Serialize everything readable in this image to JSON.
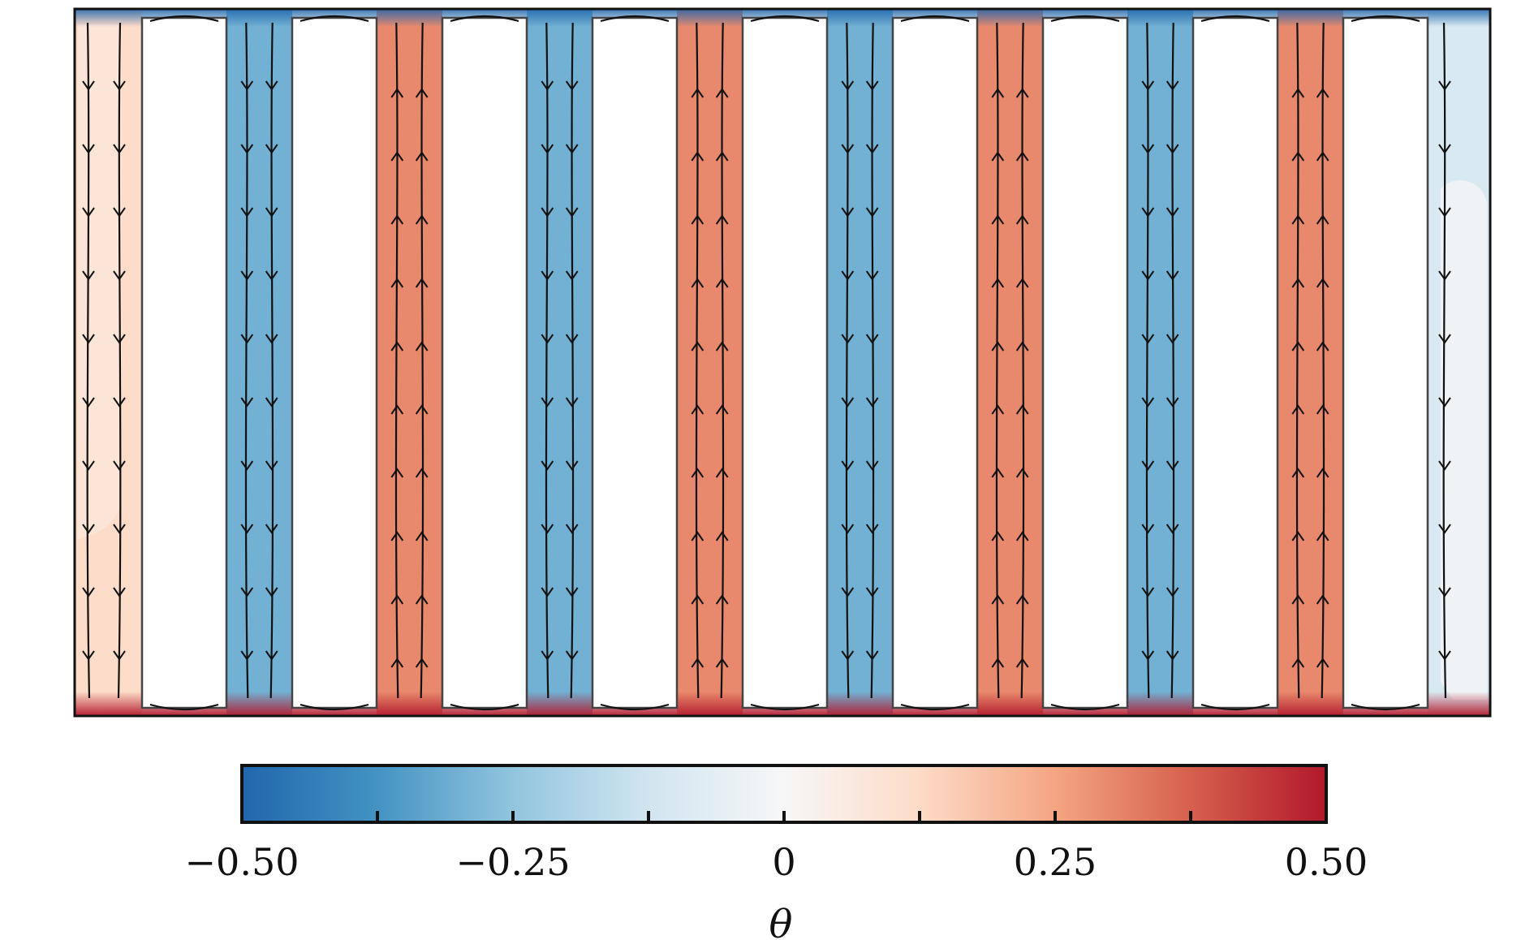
{
  "chart_data": {
    "type": "heatmap",
    "title": "",
    "colorbar": {
      "label": "θ",
      "min": -0.5,
      "max": 0.5,
      "ticks": [
        -0.5,
        -0.375,
        -0.25,
        -0.125,
        0,
        0.125,
        0.25,
        0.375,
        0.5
      ],
      "tick_labels": [
        "−0.50",
        "",
        "−0.25",
        "",
        "0",
        "",
        "0.25",
        "",
        "0.50"
      ],
      "colors": [
        "#2166ac",
        "#4393c3",
        "#92c5de",
        "#d1e5f0",
        "#f7f7f7",
        "#fddbc7",
        "#f4a582",
        "#d6604d",
        "#b2182b"
      ]
    },
    "field": {
      "description_units": "channel temperature theta between insulated blocks",
      "blocks": 9,
      "channels": [
        {
          "index": 0,
          "theta": 0.12,
          "flow": "down"
        },
        {
          "index": 1,
          "theta": -0.3,
          "flow": "down"
        },
        {
          "index": 2,
          "theta": 0.3,
          "flow": "up"
        },
        {
          "index": 3,
          "theta": -0.3,
          "flow": "down"
        },
        {
          "index": 4,
          "theta": 0.3,
          "flow": "up"
        },
        {
          "index": 5,
          "theta": -0.3,
          "flow": "down"
        },
        {
          "index": 6,
          "theta": 0.3,
          "flow": "up"
        },
        {
          "index": 7,
          "theta": -0.3,
          "flow": "down"
        },
        {
          "index": 8,
          "theta": 0.3,
          "flow": "up"
        },
        {
          "index": 9,
          "theta": -0.1,
          "flow": "down"
        }
      ],
      "top_boundary_theta": -0.5,
      "bottom_boundary_theta": 0.5
    }
  }
}
